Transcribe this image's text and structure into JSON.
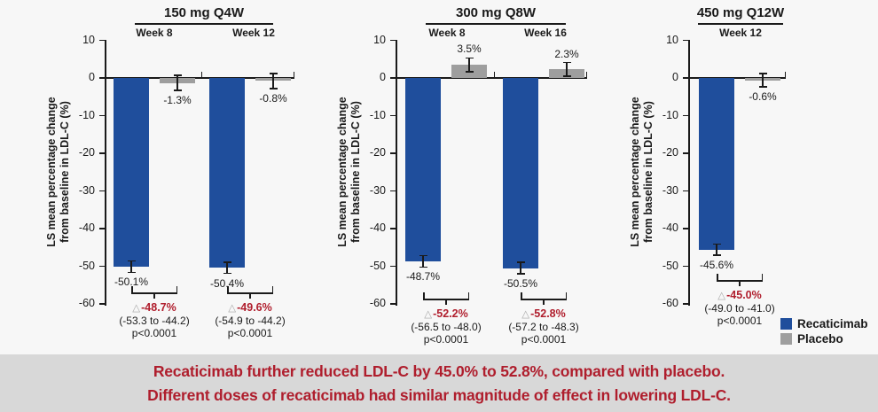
{
  "figure": {
    "ylabel_line1": "LS mean percentage change",
    "ylabel_line2": "from baseline in LDL-C (%)",
    "delta_symbol": "△"
  },
  "chart_data": {
    "type": "bar",
    "ylabel": "LS mean percentage change from baseline in LDL-C (%)",
    "ylim": [
      10,
      -60
    ],
    "yticks": [
      10,
      0,
      -10,
      -20,
      -30,
      -40,
      -50,
      -60
    ],
    "grid": false,
    "legend_position": "bottom-right",
    "panels": [
      {
        "title": "150 mg Q4W",
        "groups": [
          {
            "timepoint": "Week 8",
            "recaticimab": {
              "value": -50.1,
              "label": "-50.1%",
              "err": 1.5
            },
            "placebo": {
              "value": -1.3,
              "label": "-1.3%",
              "err": 2.0
            },
            "difference": {
              "delta": "-48.7%",
              "ci": "(-53.3 to -44.2)",
              "p": "p<0.0001"
            }
          },
          {
            "timepoint": "Week 12",
            "recaticimab": {
              "value": -50.4,
              "label": "-50.4%",
              "err": 1.5
            },
            "placebo": {
              "value": -0.8,
              "label": "-0.8%",
              "err": 2.0
            },
            "difference": {
              "delta": "-49.6%",
              "ci": "(-54.9 to -44.2)",
              "p": "p<0.0001"
            }
          }
        ]
      },
      {
        "title": "300 mg Q8W",
        "groups": [
          {
            "timepoint": "Week 8",
            "recaticimab": {
              "value": -48.7,
              "label": "-48.7%",
              "err": 1.5
            },
            "placebo": {
              "value": 3.5,
              "label": "3.5%",
              "err": 1.8
            },
            "difference": {
              "delta": "-52.2%",
              "ci": "(-56.5 to -48.0)",
              "p": "p<0.0001"
            }
          },
          {
            "timepoint": "Week 16",
            "recaticimab": {
              "value": -50.5,
              "label": "-50.5%",
              "err": 1.5
            },
            "placebo": {
              "value": 2.3,
              "label": "2.3%",
              "err": 1.8
            },
            "difference": {
              "delta": "-52.8%",
              "ci": "(-57.2 to -48.3)",
              "p": "p<0.0001"
            }
          }
        ]
      },
      {
        "title": "450 mg Q12W",
        "groups": [
          {
            "timepoint": "Week 12",
            "recaticimab": {
              "value": -45.6,
              "label": "-45.6%",
              "err": 1.5
            },
            "placebo": {
              "value": -0.6,
              "label": "-0.6%",
              "err": 1.8
            },
            "difference": {
              "delta": "-45.0%",
              "ci": "(-49.0 to -41.0)",
              "p": "p<0.0001"
            }
          }
        ]
      }
    ]
  },
  "legend": {
    "items": [
      {
        "label": "Recaticimab",
        "color": "#1f4e9c"
      },
      {
        "label": "Placebo",
        "color": "#9e9e9e"
      }
    ]
  },
  "banner": {
    "line1": "Recaticimab further reduced LDL-C by 45.0% to 52.8%, compared with placebo.",
    "line2": "Different doses of recaticimab had similar magnitude of effect in lowering LDL-C.",
    "text_color": "#af1e2d",
    "background": "#d8d8d8"
  },
  "colors": {
    "recaticimab_bar": "#1f4e9c",
    "placebo_bar": "#9e9e9e",
    "axis": "#1a1a1a",
    "delta_text": "#b01e2d",
    "figure_background": "#f7f7f7"
  }
}
